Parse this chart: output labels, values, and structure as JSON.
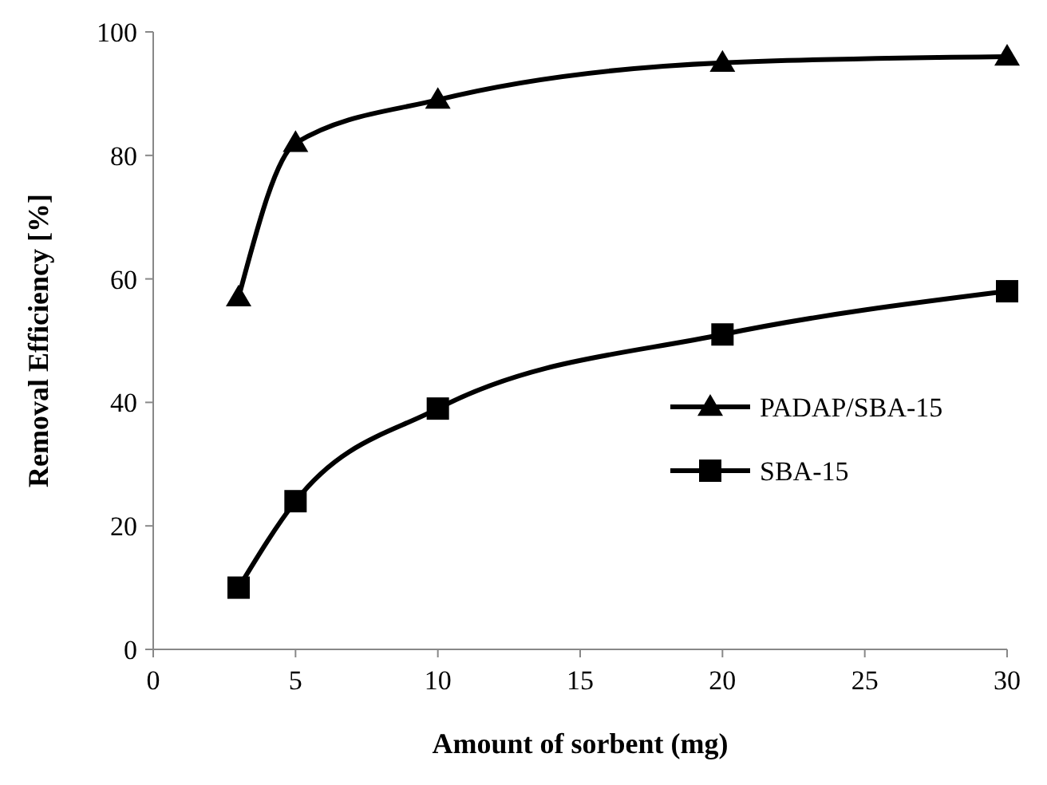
{
  "chart_data": {
    "type": "line",
    "xlabel": "Amount of sorbent (mg)",
    "ylabel": "Removal Efficiency [%]",
    "x": [
      3,
      5,
      10,
      20,
      30
    ],
    "series": [
      {
        "name": "PADAP/SBA-15",
        "color": "#000000",
        "marker": "triangle",
        "values": [
          57,
          82,
          89,
          95,
          96
        ]
      },
      {
        "name": "SBA-15",
        "color": "#000000",
        "marker": "square",
        "values": [
          10,
          24,
          39,
          51,
          58
        ]
      }
    ],
    "xlim": [
      0,
      30
    ],
    "xticks": [
      0,
      5,
      10,
      15,
      20,
      25,
      30
    ],
    "ylim": [
      0,
      100
    ],
    "yticks": [
      0,
      20,
      40,
      60,
      80,
      100
    ],
    "legend": "right",
    "line_style": "solid"
  }
}
